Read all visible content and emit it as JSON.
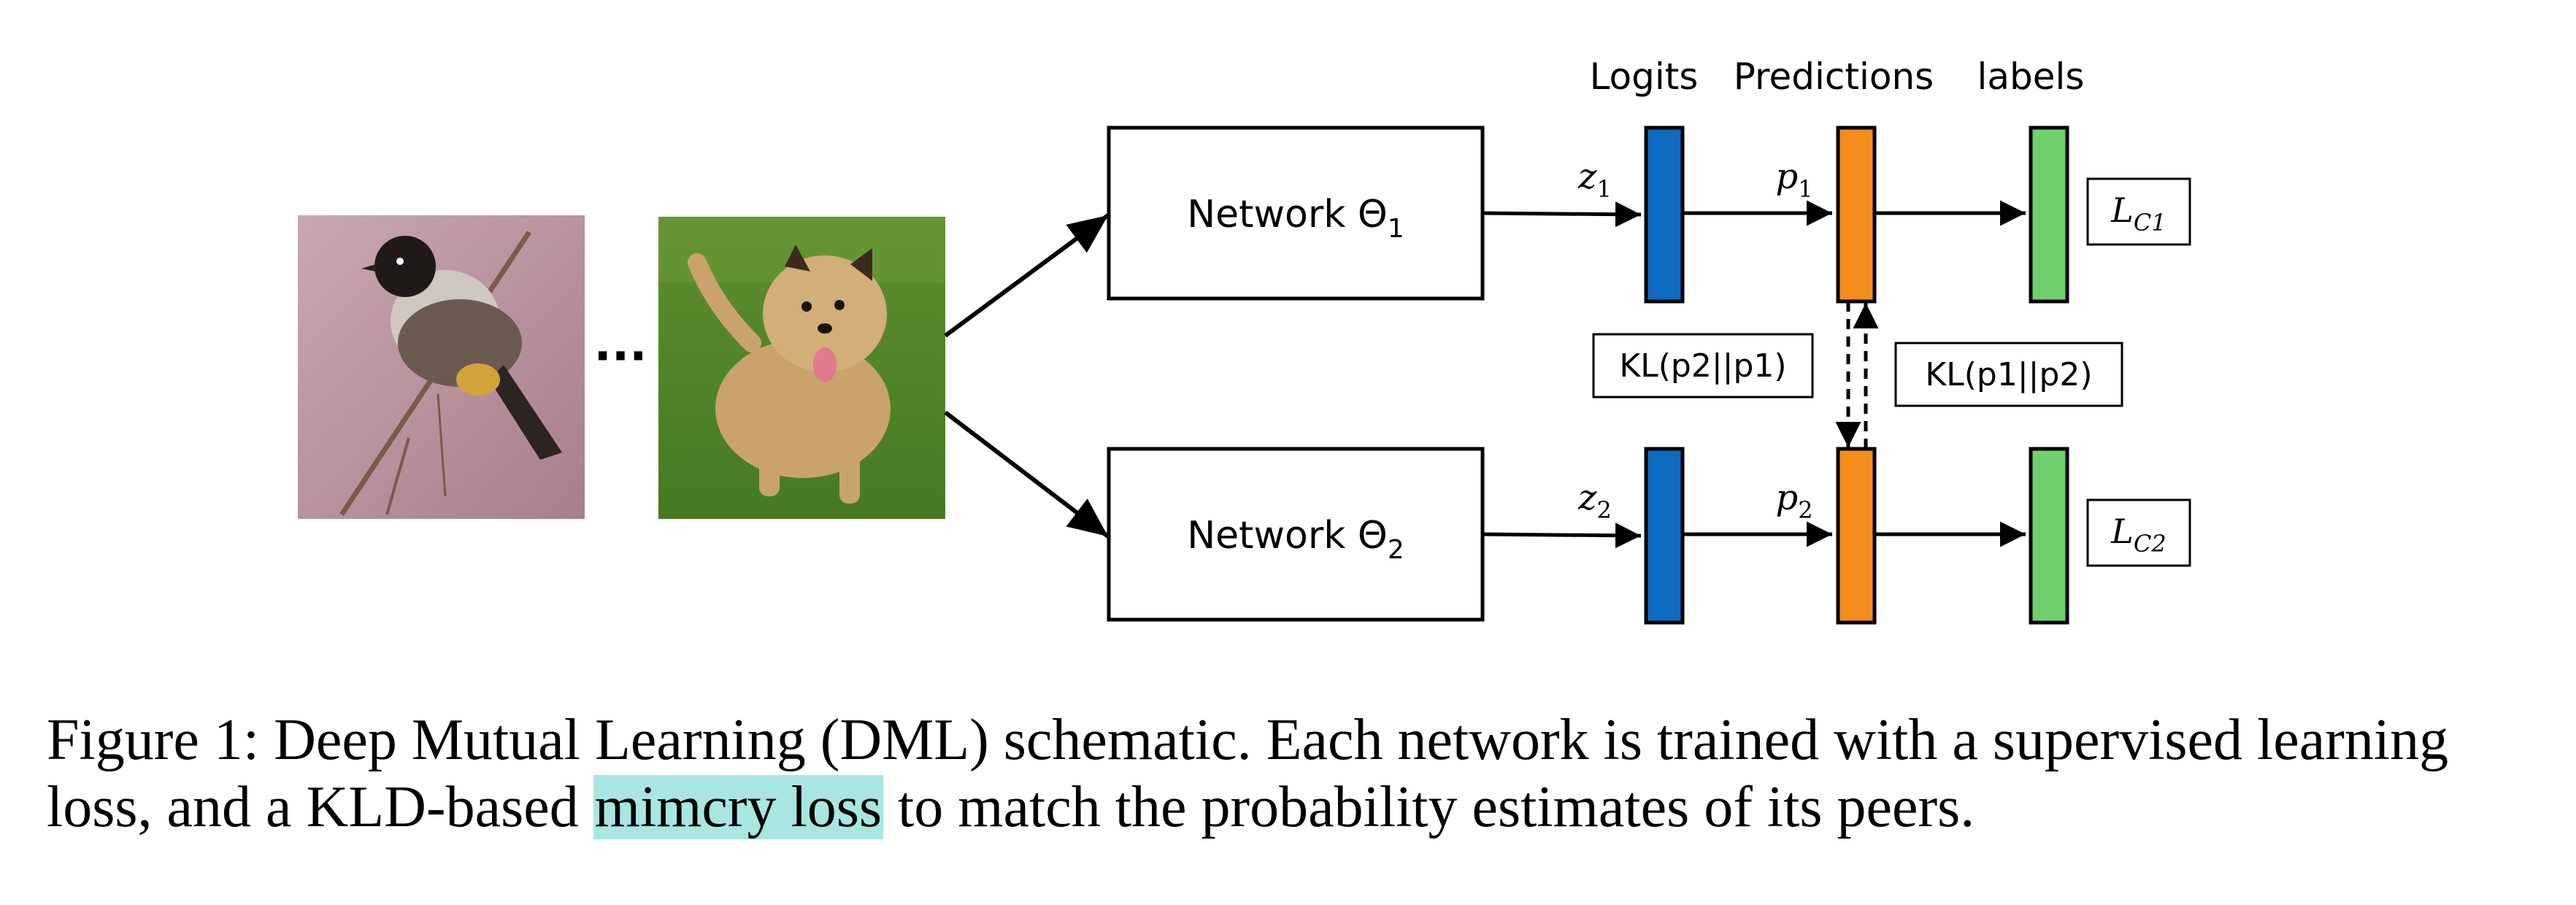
{
  "headers": {
    "logits": "Logits",
    "predictions": "Predictions",
    "labels": "labels"
  },
  "ellipsis": "···",
  "images": {
    "bird": "bird-photo",
    "dog": "dog-photo"
  },
  "networks": [
    {
      "label": "Network Θ",
      "subscript": "1"
    },
    {
      "label": "Network Θ",
      "subscript": "2"
    }
  ],
  "logit_labels": [
    {
      "symbol": "z",
      "subscript": "1"
    },
    {
      "symbol": "z",
      "subscript": "2"
    }
  ],
  "prediction_labels": [
    {
      "symbol": "p",
      "subscript": "1"
    },
    {
      "symbol": "p",
      "subscript": "2"
    }
  ],
  "losses": [
    {
      "symbol": "L",
      "subscript": "C1"
    },
    {
      "symbol": "L",
      "subscript": "C2"
    }
  ],
  "kl_labels": {
    "left": "KL(p2||p1)",
    "right": "KL(p1||p2)"
  },
  "colors": {
    "logit_bar": "#0e6bbf",
    "prediction_bar": "#f28c1c",
    "label_bar": "#6fd16c",
    "highlight": "#a8e6e2"
  },
  "caption": {
    "prefix": "Figure 1:  Deep Mutual Learning (DML) schematic.  Each network is trained with a supervised learning loss, and a KLD-based ",
    "highlight": "mimcry loss",
    "suffix": " to match the probability estimates of its peers."
  }
}
